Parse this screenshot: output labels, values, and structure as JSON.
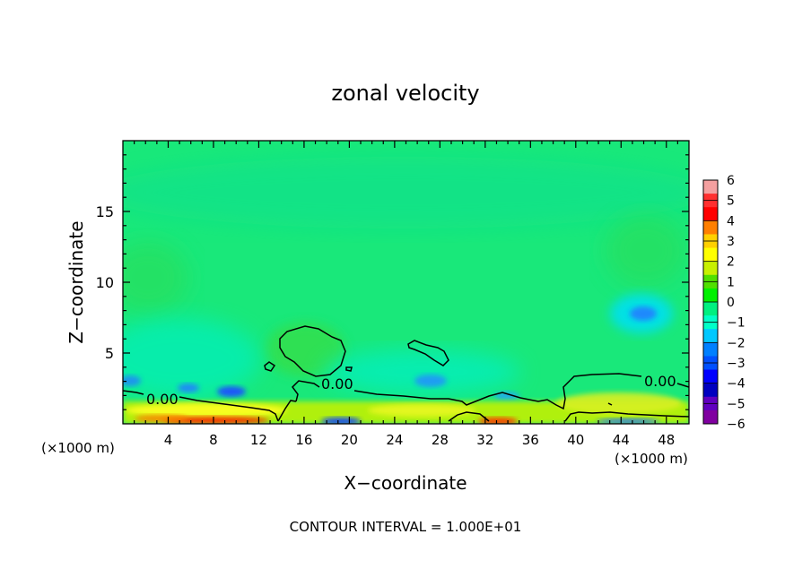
{
  "chart_data": {
    "type": "heatmap",
    "title": "zonal velocity",
    "xlabel": "X−coordinate",
    "ylabel": "Z−coordinate",
    "x_unit_left": "(×1000 m)",
    "x_unit_right": "(×1000 m)",
    "xlim": [
      0,
      50
    ],
    "ylim": [
      0,
      20
    ],
    "xticks": [
      4,
      8,
      12,
      16,
      20,
      24,
      28,
      32,
      36,
      40,
      44,
      48
    ],
    "yticks": [
      5,
      10,
      15
    ],
    "colorbar": {
      "ticks": [
        6,
        5,
        4,
        3,
        2,
        1,
        0,
        -1,
        -2,
        -3,
        -4,
        -5,
        -6
      ],
      "tick_labels": [
        "6",
        "5",
        "4",
        "3",
        "2",
        "1",
        "0",
        "−1",
        "−2",
        "−3",
        "−4",
        "−5",
        "−6"
      ],
      "colors": [
        "#f4a0a0",
        "#ff3030",
        "#ff0000",
        "#ff7f00",
        "#ffd000",
        "#ffff00",
        "#c8f000",
        "#50e000",
        "#00f000",
        "#00f080",
        "#00ffc8",
        "#00c8ff",
        "#0080ff",
        "#0050ff",
        "#0000ff",
        "#0000c0",
        "#6000c0",
        "#8000a0"
      ]
    },
    "contour_label": "0.00",
    "contour_interval_text": "CONTOUR INTERVAL = 1.000E+01"
  }
}
